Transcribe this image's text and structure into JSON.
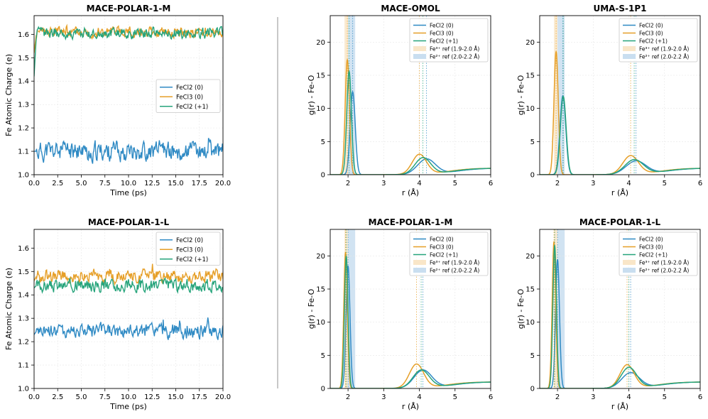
{
  "colors": {
    "fecl2_0": "#2f8ac4",
    "fecl3_0": "#e69f28",
    "fecl2_p1": "#26a47b",
    "fe3_band": "#f9e6c8",
    "fe2_band": "#c9def0",
    "grid": "#e6e6e6",
    "divider": "#c8c8c8"
  },
  "chart_data": [
    {
      "type": "line",
      "title": "MACE-POLAR-1-M",
      "xlabel": "Time (ps)",
      "ylabel": "Fe Atomic Charge (e)",
      "xlim": [
        0,
        20
      ],
      "ylim": [
        1.0,
        1.68
      ],
      "xticks": [
        "0.0",
        "2.5",
        "5.0",
        "7.5",
        "10.0",
        "12.5",
        "15.0",
        "17.5",
        "20.0"
      ],
      "yticks": [
        "1.0",
        "1.1",
        "1.2",
        "1.3",
        "1.4",
        "1.5",
        "1.6"
      ],
      "legend": {
        "position": "center-right",
        "entries": [
          "FeCl2 (0)",
          "FeCl3 (0)",
          "FeCl2 (+1)"
        ]
      },
      "series": [
        {
          "name": "FeCl2 (0)",
          "mean": 1.1,
          "noise": 0.022,
          "start": 1.1,
          "seed": 11
        },
        {
          "name": "FeCl3 (0)",
          "mean": 1.61,
          "noise": 0.012,
          "start": 1.52,
          "seed": 23
        },
        {
          "name": "FeCl2 (+1)",
          "mean": 1.605,
          "noise": 0.012,
          "start": 1.42,
          "seed": 37
        }
      ]
    },
    {
      "type": "line",
      "title": "MACE-POLAR-1-L",
      "xlabel": "Time (ps)",
      "ylabel": "Fe Atomic Charge (e)",
      "xlim": [
        0,
        20
      ],
      "ylim": [
        1.0,
        1.68
      ],
      "xticks": [
        "0.0",
        "2.5",
        "5.0",
        "7.5",
        "10.0",
        "12.5",
        "15.0",
        "17.5",
        "20.0"
      ],
      "yticks": [
        "1.0",
        "1.1",
        "1.2",
        "1.3",
        "1.4",
        "1.5",
        "1.6"
      ],
      "legend": {
        "position": "top-right",
        "entries": [
          "FeCl2 (0)",
          "FeCl3 (0)",
          "FeCl2 (+1)"
        ]
      },
      "series": [
        {
          "name": "FeCl2 (0)",
          "mean": 1.245,
          "noise": 0.016,
          "start": 1.23,
          "seed": 41
        },
        {
          "name": "FeCl3 (0)",
          "mean": 1.48,
          "noise": 0.014,
          "start": 1.46,
          "seed": 53
        },
        {
          "name": "FeCl2 (+1)",
          "mean": 1.44,
          "noise": 0.014,
          "start": 1.43,
          "seed": 67
        }
      ]
    },
    {
      "type": "line",
      "title": "MACE-OMOL",
      "xlabel": "r (Å)",
      "ylabel": "g(r) - Fe-O",
      "xlim": [
        1.5,
        6
      ],
      "ylim": [
        0,
        24
      ],
      "xticks": [
        "2",
        "3",
        "4",
        "5",
        "6"
      ],
      "yticks": [
        "0",
        "5",
        "10",
        "15",
        "20"
      ],
      "legend": {
        "position": "top-right",
        "entries": [
          "FeCl2 (0)",
          "FeCl3 (0)",
          "FeCl2 (+1)",
          "Fe³⁺ ref (1.9-2.0 Å)",
          "Fe²⁺ ref (2.0-2.2 Å)"
        ]
      },
      "reference_bands": [
        [
          1.9,
          2.0
        ],
        [
          2.0,
          2.2
        ]
      ],
      "series": [
        {
          "name": "FeCl2 (0)",
          "peak1": [
            2.13,
            12.5,
            0.07
          ],
          "peak2": [
            4.2,
            2.3,
            0.25
          ],
          "vlines": [
            2.13,
            4.2
          ]
        },
        {
          "name": "FeCl3 (0)",
          "peak1": [
            1.98,
            17.4,
            0.06
          ],
          "peak2": [
            4.0,
            3.0,
            0.2
          ],
          "vlines": [
            1.98,
            4.0
          ]
        },
        {
          "name": "FeCl2 (+1)",
          "peak1": [
            2.03,
            15.6,
            0.065
          ],
          "peak2": [
            4.1,
            2.5,
            0.22
          ],
          "vlines": [
            2.03,
            4.1
          ]
        }
      ]
    },
    {
      "type": "line",
      "title": "UMA-S-1P1",
      "xlabel": "r (Å)",
      "ylabel": "g(r) - Fe-O",
      "xlim": [
        1.5,
        6
      ],
      "ylim": [
        0,
        24
      ],
      "xticks": [
        "2",
        "3",
        "4",
        "5",
        "6"
      ],
      "yticks": [
        "0",
        "5",
        "10",
        "15",
        "20"
      ],
      "legend": {
        "position": "top-right",
        "entries": [
          "FeCl2 (0)",
          "FeCl3 (0)",
          "FeCl2 (+1)",
          "Fe³⁺ ref (1.9-2.0 Å)",
          "Fe²⁺ ref (2.0-2.2 Å)"
        ]
      },
      "reference_bands": [
        [
          1.9,
          2.0
        ],
        [
          2.0,
          2.2
        ]
      ],
      "series": [
        {
          "name": "FeCl2 (0)",
          "peak1": [
            2.15,
            11.9,
            0.08
          ],
          "peak2": [
            4.2,
            2.0,
            0.28
          ],
          "vlines": [
            2.15,
            4.2
          ]
        },
        {
          "name": "FeCl3 (0)",
          "peak1": [
            1.96,
            18.6,
            0.06
          ],
          "peak2": [
            4.05,
            2.8,
            0.22
          ],
          "vlines": [
            1.96,
            4.05
          ]
        },
        {
          "name": "FeCl2 (+1)",
          "peak1": [
            2.16,
            11.8,
            0.08
          ],
          "peak2": [
            4.15,
            2.2,
            0.26
          ],
          "vlines": [
            2.16,
            4.15
          ]
        }
      ]
    },
    {
      "type": "line",
      "title": "MACE-POLAR-1-M",
      "xlabel": "r (Å)",
      "ylabel": "g(r) - Fe-O",
      "xlim": [
        1.5,
        6
      ],
      "ylim": [
        0,
        24
      ],
      "xticks": [
        "2",
        "3",
        "4",
        "5",
        "6"
      ],
      "yticks": [
        "0",
        "5",
        "10",
        "15",
        "20"
      ],
      "legend": {
        "position": "top-right",
        "entries": [
          "FeCl2 (0)",
          "FeCl3 (0)",
          "FeCl2 (+1)",
          "Fe³⁺ ref (1.9-2.0 Å)",
          "Fe²⁺ ref (2.0-2.2 Å)"
        ]
      },
      "reference_bands": [
        [
          1.9,
          2.0
        ],
        [
          2.0,
          2.2
        ]
      ],
      "series": [
        {
          "name": "FeCl2 (0)",
          "peak1": [
            2.0,
            18.5,
            0.055
          ],
          "peak2": [
            4.1,
            2.7,
            0.25
          ],
          "vlines": [
            2.0,
            4.1
          ]
        },
        {
          "name": "FeCl3 (0)",
          "peak1": [
            1.93,
            20.6,
            0.05
          ],
          "peak2": [
            3.92,
            3.6,
            0.2
          ],
          "vlines": [
            1.93,
            3.92
          ]
        },
        {
          "name": "FeCl2 (+1)",
          "peak1": [
            1.95,
            20.0,
            0.05
          ],
          "peak2": [
            4.05,
            2.7,
            0.23
          ],
          "vlines": [
            1.95,
            4.05
          ]
        }
      ]
    },
    {
      "type": "line",
      "title": "MACE-POLAR-1-L",
      "xlabel": "r (Å)",
      "ylabel": "g(r) - Fe-O",
      "xlim": [
        1.5,
        6
      ],
      "ylim": [
        0,
        24
      ],
      "xticks": [
        "2",
        "3",
        "4",
        "5",
        "6"
      ],
      "yticks": [
        "0",
        "5",
        "10",
        "15",
        "20"
      ],
      "legend": {
        "position": "top-right",
        "entries": [
          "FeCl2 (0)",
          "FeCl3 (0)",
          "FeCl2 (+1)",
          "Fe³⁺ ref (1.9-2.0 Å)",
          "Fe²⁺ ref (2.0-2.2 Å)"
        ]
      },
      "reference_bands": [
        [
          1.9,
          2.0
        ],
        [
          2.0,
          2.2
        ]
      ],
      "series": [
        {
          "name": "FeCl2 (0)",
          "peak1": [
            2.0,
            19.5,
            0.055
          ],
          "peak2": [
            4.05,
            2.3,
            0.25
          ],
          "vlines": [
            2.0,
            4.05
          ]
        },
        {
          "name": "FeCl3 (0)",
          "peak1": [
            1.9,
            22.2,
            0.05
          ],
          "peak2": [
            3.95,
            3.5,
            0.2
          ],
          "vlines": [
            1.9,
            3.95
          ]
        },
        {
          "name": "FeCl2 (+1)",
          "peak1": [
            1.92,
            21.6,
            0.05
          ],
          "peak2": [
            4.0,
            3.1,
            0.22
          ],
          "vlines": [
            1.92,
            4.0
          ]
        }
      ]
    }
  ]
}
